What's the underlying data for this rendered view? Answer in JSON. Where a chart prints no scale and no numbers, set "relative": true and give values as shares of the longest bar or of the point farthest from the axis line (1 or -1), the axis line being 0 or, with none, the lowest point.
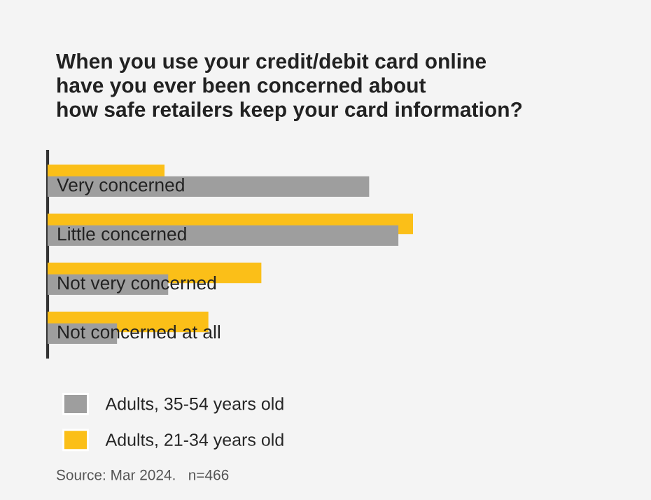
{
  "chart_data": {
    "type": "bar",
    "orientation": "horizontal",
    "relative": true,
    "title": "When you use your credit/debit card online\nhave you ever been concerned about\nhow safe retailers keep your card information?",
    "categories": [
      "Very concerned",
      "Little concerned",
      "Not very concerned",
      "Not concerned at all"
    ],
    "series": [
      {
        "name": "Adults, 35-54 years old",
        "color": "#9e9e9e",
        "values": [
          0.88,
          0.96,
          0.33,
          0.19
        ]
      },
      {
        "name": "Adults, 21-34 years old",
        "color": "#fbbf18",
        "values": [
          0.32,
          1,
          0.585,
          0.44
        ]
      }
    ],
    "legend": "bottom",
    "annotations": [
      "Source: Mar 2024.   n=466"
    ]
  }
}
